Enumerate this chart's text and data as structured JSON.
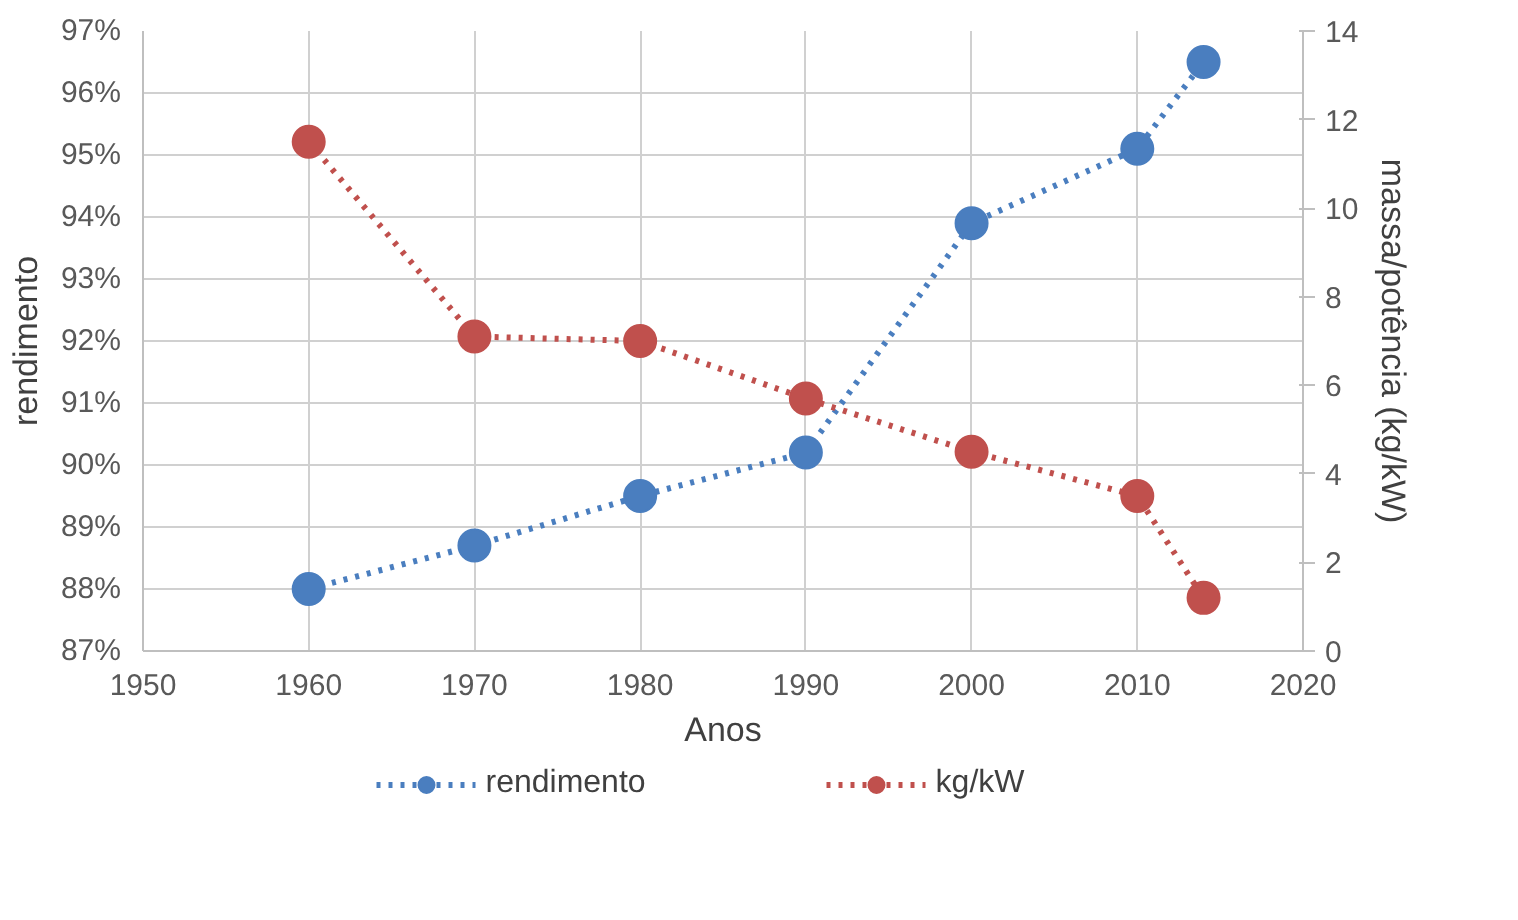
{
  "chart_data": {
    "type": "line",
    "xlabel": "Anos",
    "ylabel": "rendimento",
    "y2label": "massa/potência (kg/kW)",
    "x": [
      1960,
      1970,
      1980,
      1990,
      2000,
      2010,
      2014
    ],
    "xlim": [
      1950,
      2020
    ],
    "xticks": [
      1950,
      1960,
      1970,
      1980,
      1990,
      2000,
      2010,
      2020
    ],
    "ylim": [
      87,
      97
    ],
    "yticks": [
      {
        "value": 87,
        "label": "87%"
      },
      {
        "value": 88,
        "label": "88%"
      },
      {
        "value": 89,
        "label": "89%"
      },
      {
        "value": 90,
        "label": "90%"
      },
      {
        "value": 91,
        "label": "91%"
      },
      {
        "value": 92,
        "label": "92%"
      },
      {
        "value": 93,
        "label": "93%"
      },
      {
        "value": 94,
        "label": "94%"
      },
      {
        "value": 95,
        "label": "95%"
      },
      {
        "value": 96,
        "label": "96%"
      },
      {
        "value": 97,
        "label": "97%"
      }
    ],
    "y2lim": [
      0,
      14
    ],
    "y2ticks": [
      0,
      2,
      4,
      6,
      8,
      10,
      12,
      14
    ],
    "series": [
      {
        "name": "rendimento",
        "color": "#4a7ebf",
        "values": [
          88.0,
          88.7,
          89.5,
          90.2,
          93.9,
          95.1,
          96.5
        ]
      },
      {
        "name": "kg/kW",
        "color": "#c0504d",
        "axis": "y2",
        "values": [
          11.5,
          7.1,
          7.0,
          5.7,
          4.5,
          3.5,
          1.2
        ]
      }
    ],
    "grid": true,
    "legend": "bottom",
    "marker": "circle",
    "line_style": "dotted"
  }
}
